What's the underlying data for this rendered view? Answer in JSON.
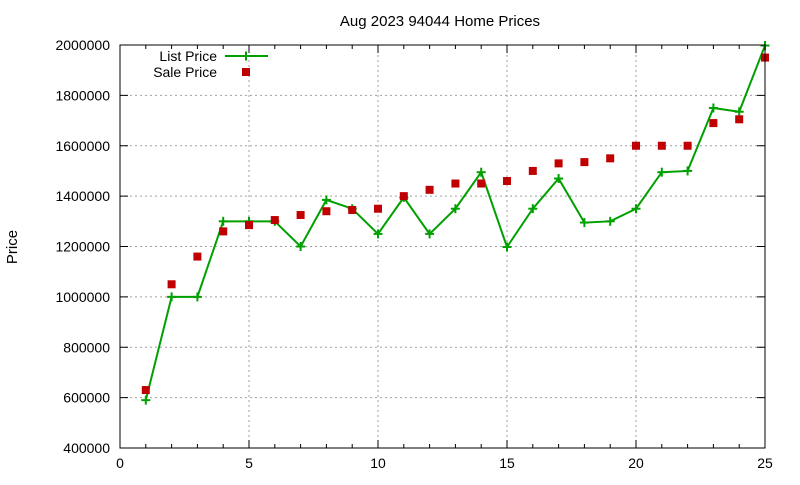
{
  "chart_data": {
    "type": "line",
    "title": "Aug 2023 94044 Home Prices",
    "xlabel": "",
    "ylabel": "Price",
    "xlim": [
      0,
      25
    ],
    "ylim": [
      400000,
      2000000
    ],
    "x_ticks": [
      0,
      5,
      10,
      15,
      20,
      25
    ],
    "y_ticks": [
      400000,
      600000,
      800000,
      1000000,
      1200000,
      1400000,
      1600000,
      1800000,
      2000000
    ],
    "grid": true,
    "legend_position": "top-left",
    "series": [
      {
        "name": "List Price",
        "style": "line-points",
        "marker": "plus",
        "color": "#00a000",
        "x": [
          1,
          2,
          3,
          4,
          5,
          6,
          7,
          8,
          9,
          10,
          11,
          12,
          13,
          14,
          15,
          16,
          17,
          18,
          19,
          20,
          21,
          22,
          23,
          24,
          25
        ],
        "y": [
          590000,
          1000000,
          1000000,
          1300000,
          1300000,
          1300000,
          1200000,
          1385000,
          1350000,
          1250000,
          1395000,
          1250000,
          1350000,
          1495000,
          1198000,
          1350000,
          1470000,
          1295000,
          1300000,
          1350000,
          1495000,
          1500000,
          1750000,
          1735000,
          1998000
        ]
      },
      {
        "name": "Sale Price",
        "style": "points",
        "marker": "square",
        "color": "#c00000",
        "x": [
          1,
          2,
          3,
          4,
          5,
          6,
          7,
          8,
          9,
          10,
          11,
          12,
          13,
          14,
          15,
          16,
          17,
          18,
          19,
          20,
          21,
          22,
          23,
          24,
          25
        ],
        "y": [
          630000,
          1050000,
          1160000,
          1260000,
          1285000,
          1305000,
          1325000,
          1340000,
          1345000,
          1350000,
          1400000,
          1425000,
          1450000,
          1450000,
          1460000,
          1500000,
          1530000,
          1535000,
          1550000,
          1600000,
          1600000,
          1600000,
          1690000,
          1705000,
          1950000
        ]
      }
    ]
  }
}
